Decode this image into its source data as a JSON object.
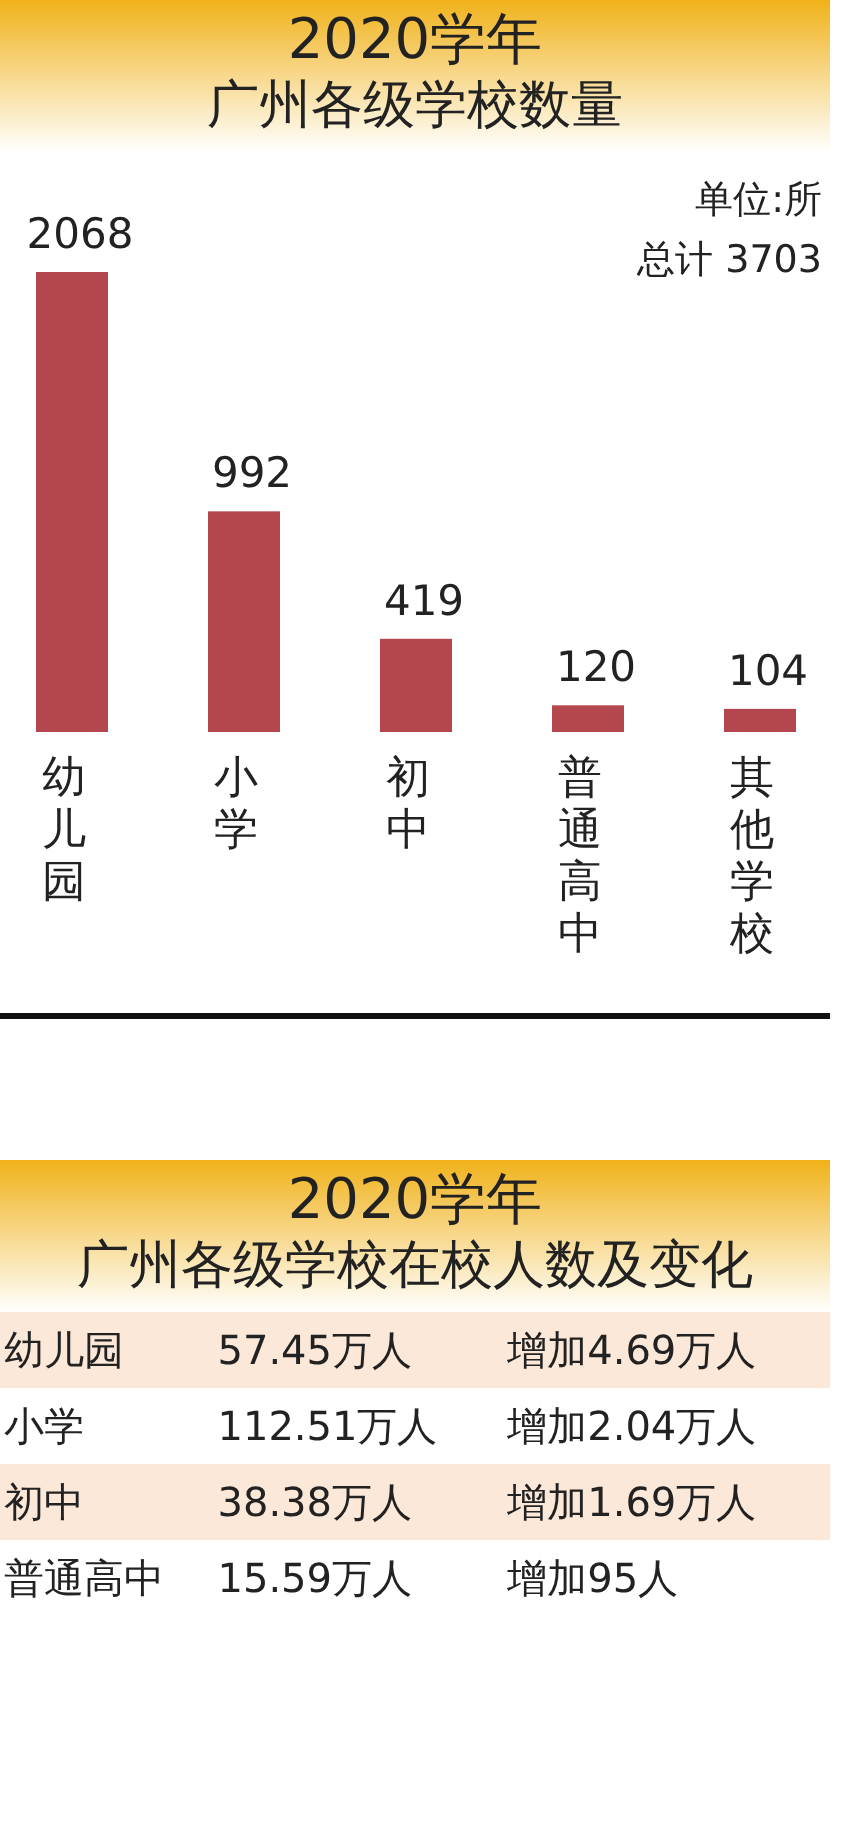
{
  "chart_data": [
    {
      "type": "bar",
      "title": "2020学年",
      "subtitle": "广州各级学校数量",
      "categories": [
        "幼儿园",
        "小学",
        "初中",
        "普通高中",
        "其他学校"
      ],
      "values": [
        2068,
        992,
        419,
        120,
        104
      ],
      "color": "#b4464e",
      "data_labels": true,
      "annotations": [
        "单位:所",
        "总计 3703"
      ]
    },
    {
      "type": "other",
      "title": "2020学年",
      "subtitle": "广州各级学校在校人数及变化",
      "annotations": [
        "幼儿园",
        "57.45万人",
        "增加4.69万人",
        "小学",
        "112.51万人",
        "增加2.04万人",
        "初中",
        "38.38万人",
        "增加1.69万人",
        "普通高中",
        "15.59万人",
        "增加95人"
      ]
    }
  ]
}
